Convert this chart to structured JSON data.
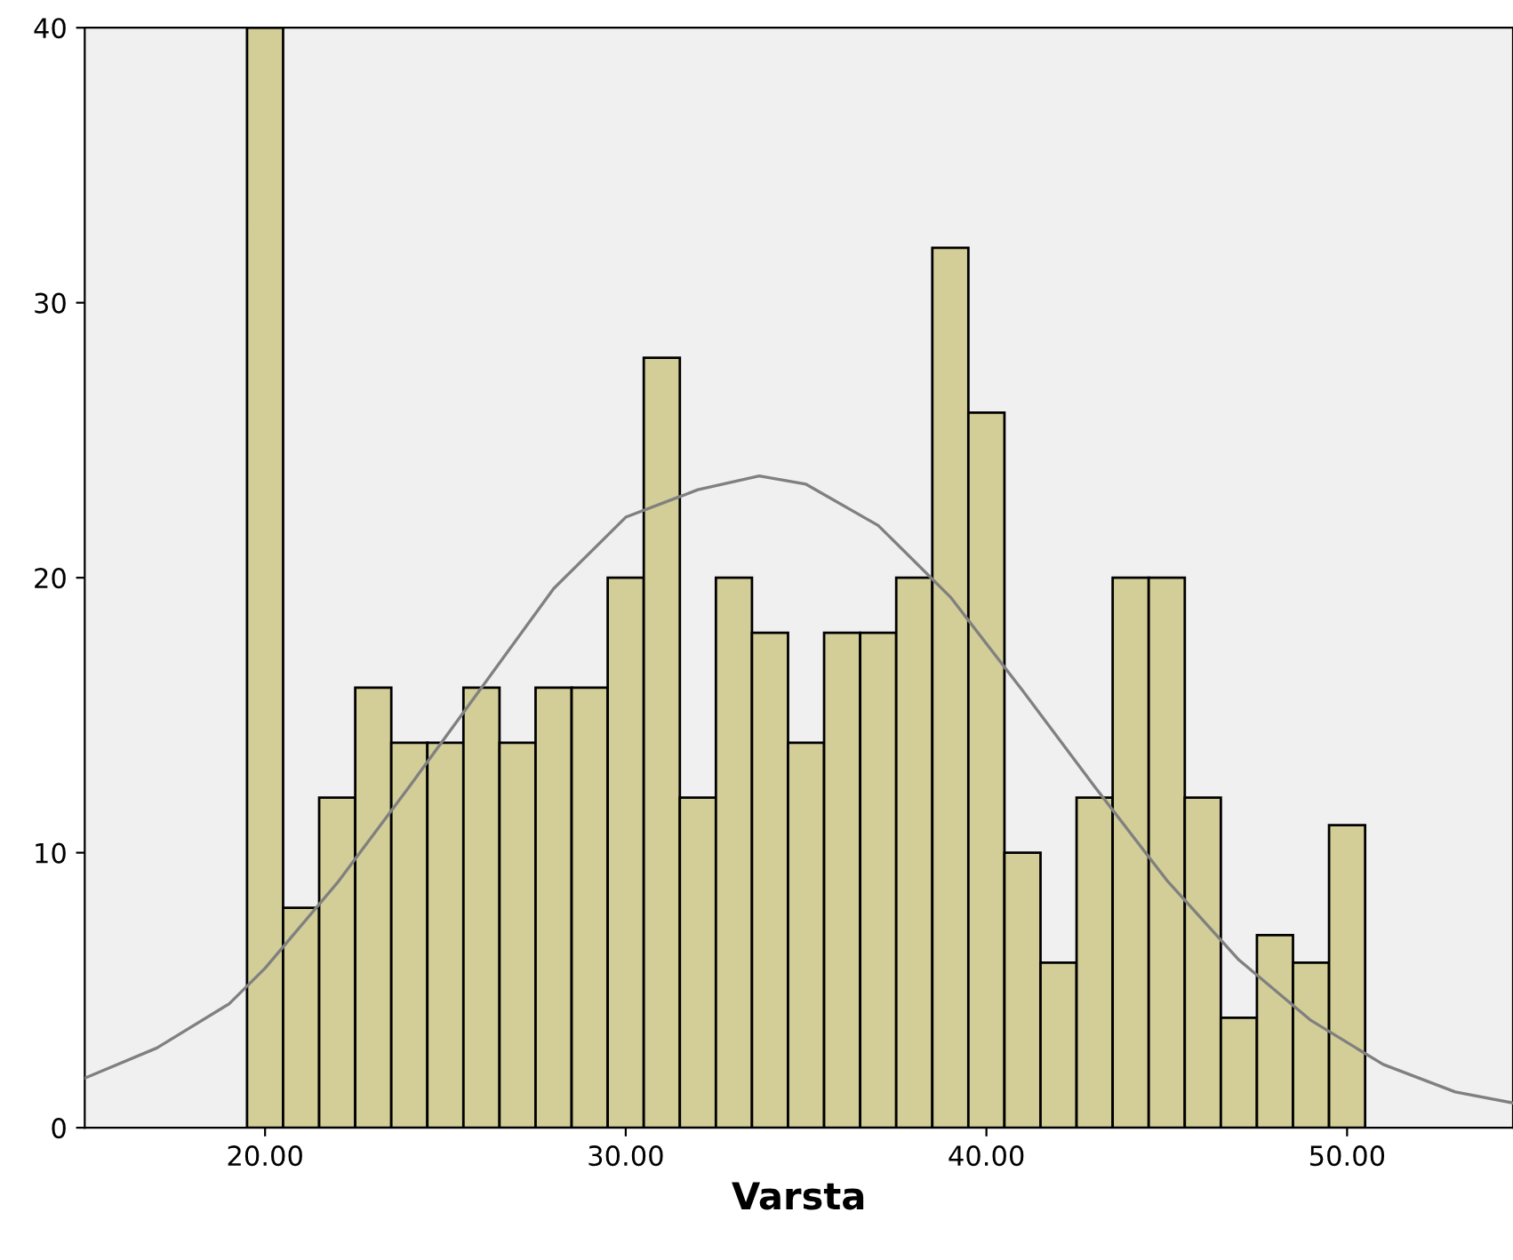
{
  "chart_data": {
    "type": "histogram",
    "xlabel": "Varsta",
    "color": "#d3ce97",
    "bins": [
      19.5,
      20.5,
      21.5,
      22.5,
      23.5,
      24.5,
      25.5,
      26.5,
      27.5,
      28.5,
      29.5,
      30.5,
      31.5,
      32.5,
      33.5,
      34.5,
      35.5,
      36.5,
      37.5,
      38.5,
      39.5,
      40.5,
      41.5,
      42.5,
      43.5,
      44.5,
      45.5,
      46.5,
      47.5,
      48.5,
      49.5,
      50.5
    ],
    "values": [
      40,
      8,
      12,
      16,
      14,
      14,
      16,
      14,
      16,
      16,
      20,
      28,
      12,
      20,
      18,
      14,
      18,
      18,
      20,
      32,
      26,
      10,
      6,
      12,
      20,
      20,
      12,
      4,
      7,
      6,
      11
    ],
    "series": [
      {
        "type": "line",
        "color": "#808080",
        "x": [
          15,
          17,
          19,
          20,
          22,
          24,
          26,
          28,
          30,
          32,
          33.7,
          35,
          37,
          39,
          41,
          43,
          45,
          47,
          49,
          51,
          53,
          54.6
        ],
        "values": [
          1.8,
          2.9,
          4.5,
          5.8,
          8.9,
          12.4,
          16.0,
          19.6,
          22.2,
          23.2,
          23.7,
          23.4,
          21.9,
          19.3,
          15.9,
          12.4,
          9.0,
          6.1,
          3.9,
          2.3,
          1.3,
          0.9
        ]
      }
    ],
    "xlim": [
      15,
      54.6
    ],
    "xticks": [
      {
        "value": 20,
        "label": "20.00"
      },
      {
        "value": 30,
        "label": "30.00"
      },
      {
        "value": 40,
        "label": "40.00"
      },
      {
        "value": 50,
        "label": "50.00"
      }
    ],
    "ylim": [
      0,
      40
    ],
    "yticks": [
      0,
      10,
      20,
      30,
      40
    ],
    "grid": false
  }
}
